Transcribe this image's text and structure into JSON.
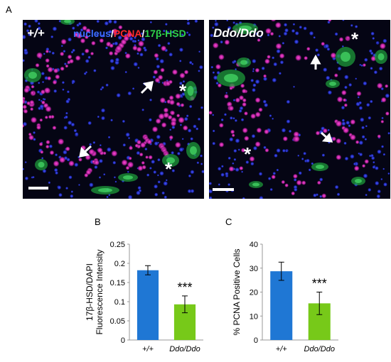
{
  "figure": {
    "panel_a_letter": "A",
    "panel_b_letter": "B",
    "panel_c_letter": "C"
  },
  "micrographs": {
    "left": {
      "genotype": "+/+",
      "stain_legend": [
        {
          "text": "nucleus",
          "color": "#3a6cff"
        },
        {
          "text": "/",
          "color": "#ffffff"
        },
        {
          "text": "PCNA",
          "color": "#ff2a2a"
        },
        {
          "text": "/",
          "color": "#ffffff"
        },
        {
          "text": "17β-HSD",
          "color": "#2fd24a"
        }
      ],
      "asterisk": "*"
    },
    "right": {
      "genotype": "Ddo/Ddo",
      "asterisk": "*"
    }
  },
  "chart_data": [
    {
      "type": "bar",
      "ylabel_line1": "17β-HSD/DAPI",
      "ylabel_line2": "Fluorescence Intensity",
      "categories": [
        "+/+",
        "Ddo/Ddo"
      ],
      "values": [
        0.182,
        0.093
      ],
      "errors": [
        0.012,
        0.022
      ],
      "colors": [
        "#1f77d4",
        "#77c919"
      ],
      "ylim": [
        0,
        0.25
      ],
      "yticks": [
        "0",
        "0.05",
        "0.1",
        "0.15",
        "0.2",
        "0.25"
      ],
      "significance": "***"
    },
    {
      "type": "bar",
      "ylabel": "% PCNA Positive Cells",
      "categories": [
        "+/+",
        "Ddo/Ddo"
      ],
      "values": [
        28.7,
        15.3
      ],
      "errors": [
        3.8,
        4.7
      ],
      "colors": [
        "#1f77d4",
        "#77c919"
      ],
      "ylim": [
        0,
        40
      ],
      "yticks": [
        "0",
        "10",
        "20",
        "30",
        "40"
      ],
      "significance": "***"
    }
  ]
}
